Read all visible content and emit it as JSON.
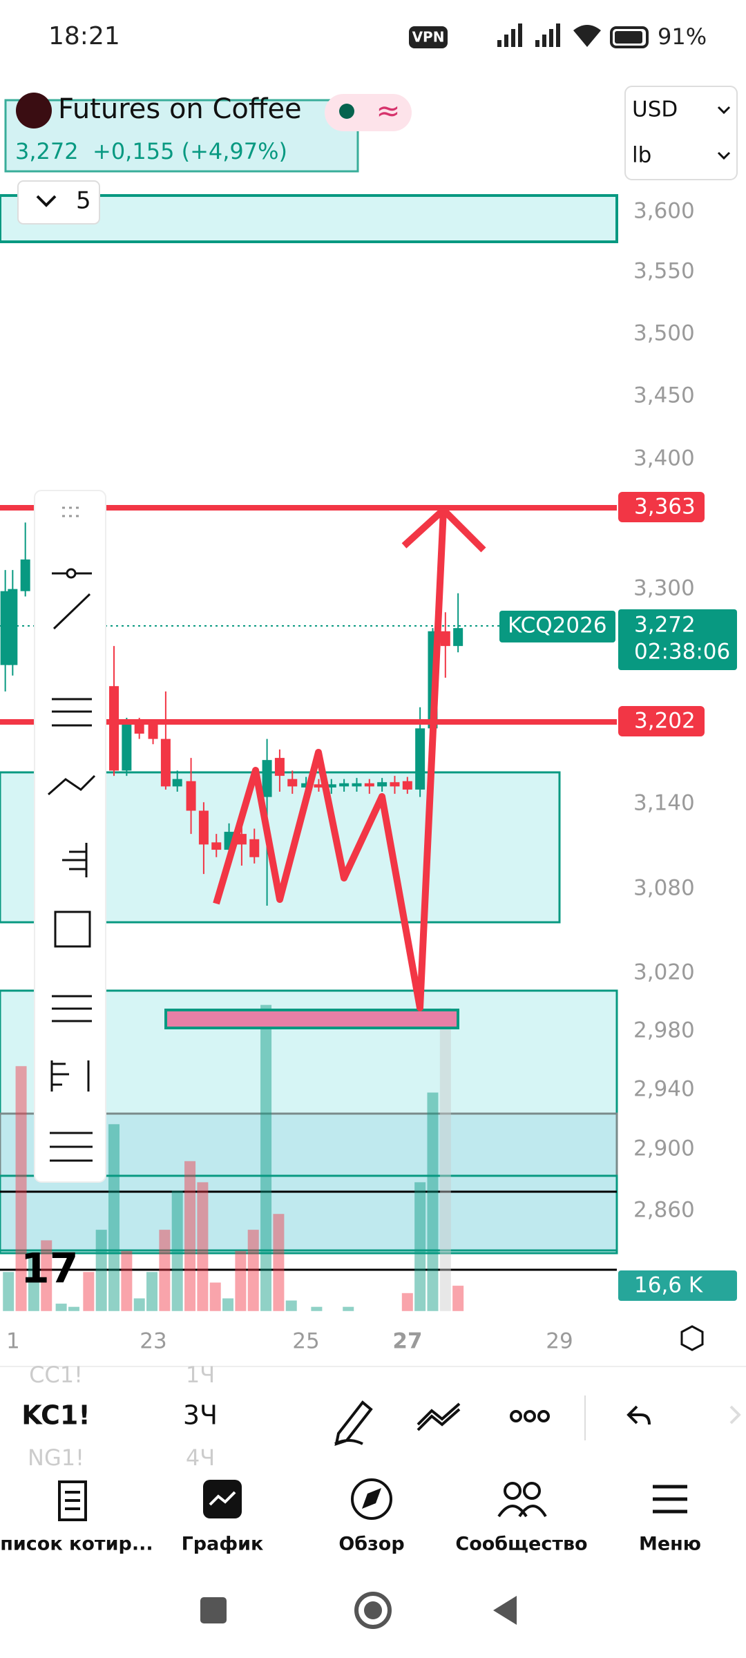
{
  "status_bar": {
    "time": "18:21",
    "vpn": "VPN",
    "battery": "91%"
  },
  "symbol": {
    "name": "Futures on Coffee",
    "price": "3,272",
    "change": "+0,155 (+4,97%)",
    "interval_count": "5"
  },
  "units": {
    "currency": "USD",
    "unit": "lb"
  },
  "price_axis": [
    "3,600",
    "3,550",
    "3,500",
    "3,450",
    "3,400",
    "3,300",
    "3,140",
    "3,080",
    "3,020",
    "2,980",
    "2,940",
    "2,900",
    "2,860"
  ],
  "badges": {
    "upper_line": "3,363",
    "ticker": "KCQ2026",
    "last_price": "3,272",
    "countdown": "02:38:06",
    "lower_line": "3,202",
    "volume": "16,6 K"
  },
  "time_axis": [
    "1",
    "23",
    "25",
    "27",
    "29"
  ],
  "watchlist": {
    "prev": [
      "CC1!",
      "1Ч"
    ],
    "current": [
      "KC1!",
      "3Ч"
    ],
    "next": [
      "NG1!",
      "4Ч"
    ]
  },
  "nav": [
    "Список котир...",
    "График",
    "Обзор",
    "Сообщество",
    "Меню"
  ]
}
